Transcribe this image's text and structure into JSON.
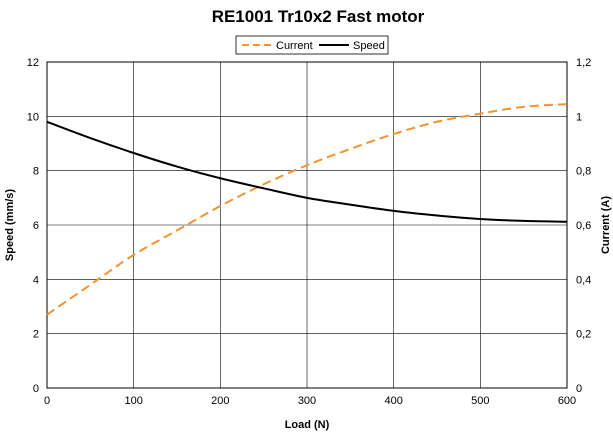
{
  "chart_data": {
    "type": "line",
    "title": "RE1001 Tr10x2 Fast motor",
    "xlabel": "Load (N)",
    "ylabel_left": "Speed (mm/s)",
    "ylabel_right": "Current (A)",
    "xlim": [
      0,
      600
    ],
    "ylim_left": [
      0,
      12
    ],
    "ylim_right": [
      0,
      1.2
    ],
    "x_ticks": [
      "0",
      "100",
      "200",
      "300",
      "400",
      "500",
      "600"
    ],
    "y_left_ticks": [
      "0",
      "2",
      "4",
      "6",
      "8",
      "10",
      "12"
    ],
    "y_right_ticks": [
      "0",
      "0,2",
      "0,4",
      "0,6",
      "0,8",
      "1",
      "1,2"
    ],
    "grid": true,
    "legend_position": "top-center",
    "series": [
      {
        "name": "Current",
        "axis": "right",
        "color": "#f5922f",
        "style": "dashed",
        "x": [
          0,
          50,
          100,
          150,
          200,
          250,
          300,
          350,
          400,
          450,
          500,
          550,
          600
        ],
        "y": [
          0.27,
          0.38,
          0.49,
          0.58,
          0.67,
          0.75,
          0.82,
          0.88,
          0.935,
          0.98,
          1.01,
          1.035,
          1.045
        ]
      },
      {
        "name": "Speed",
        "axis": "left",
        "color": "#000000",
        "style": "solid",
        "x": [
          0,
          50,
          100,
          150,
          200,
          250,
          300,
          350,
          400,
          450,
          500,
          550,
          600
        ],
        "y": [
          9.8,
          9.2,
          8.65,
          8.15,
          7.72,
          7.35,
          7.0,
          6.75,
          6.52,
          6.35,
          6.22,
          6.15,
          6.12
        ]
      }
    ]
  }
}
